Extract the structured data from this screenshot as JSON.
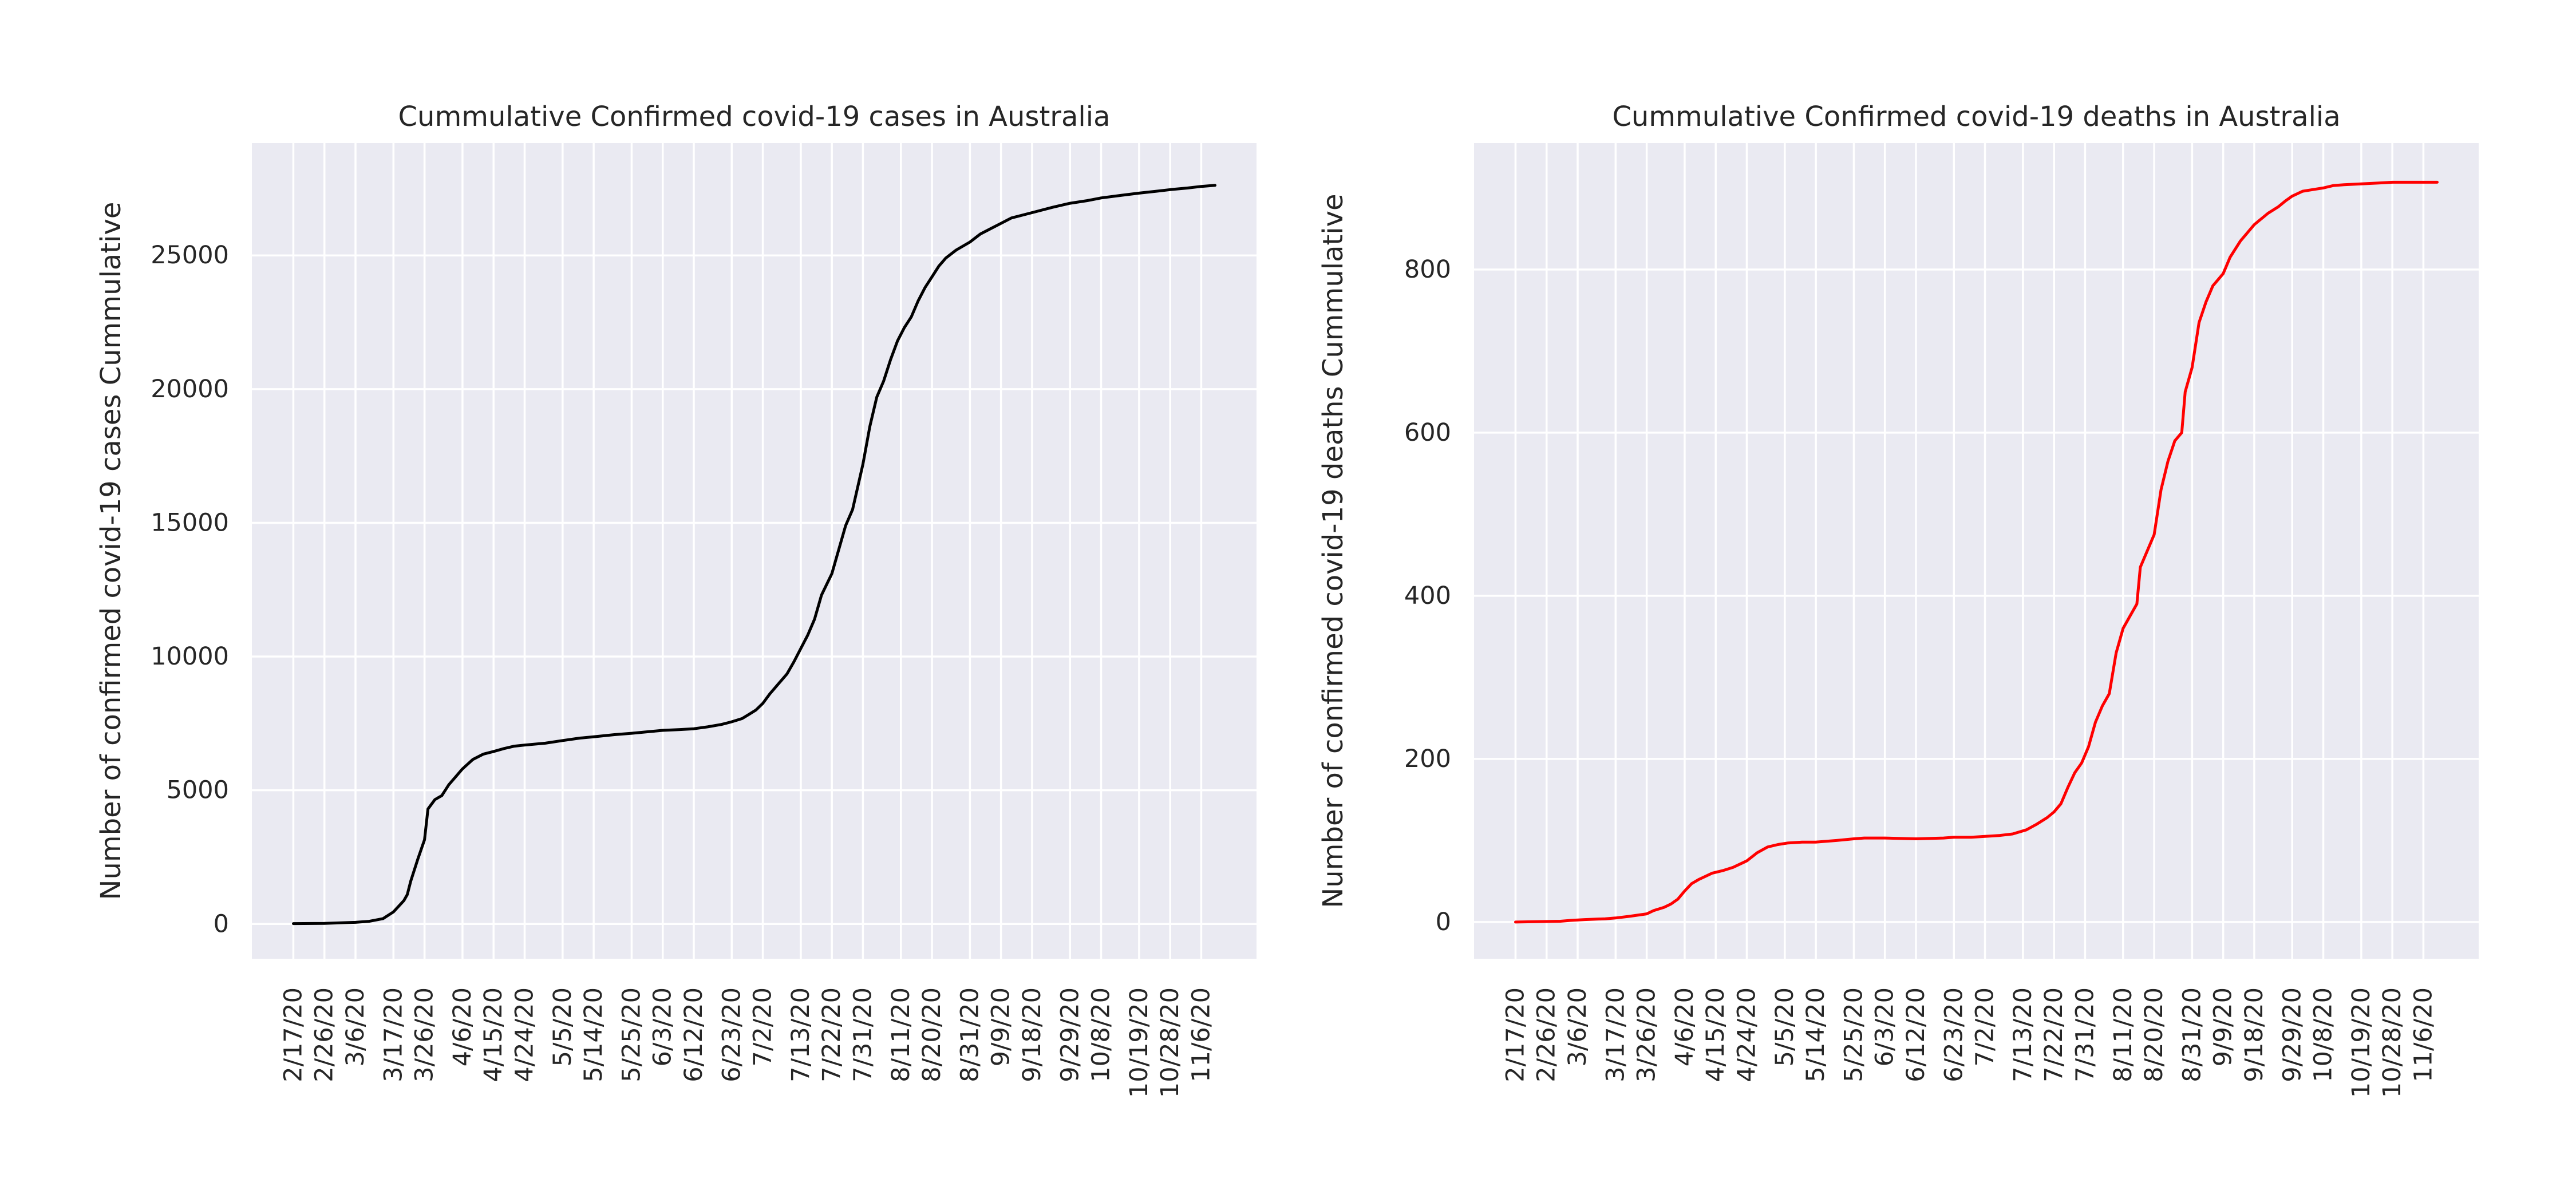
{
  "chart_data": [
    {
      "type": "line",
      "title": "Cummulative Confirmed covid-19 cases in Australia",
      "xlabel": "",
      "ylabel": "Number of confirmed covid-19 cases Cummulative",
      "x_start": "2/17/20",
      "x_end": "11/10/20",
      "xtick_labels": [
        "2/17/20",
        "2/26/20",
        "3/6/20",
        "3/17/20",
        "3/26/20",
        "4/6/20",
        "4/15/20",
        "4/24/20",
        "5/5/20",
        "5/14/20",
        "5/25/20",
        "6/3/20",
        "6/12/20",
        "6/23/20",
        "7/2/20",
        "7/13/20",
        "7/22/20",
        "7/31/20",
        "8/11/20",
        "8/20/20",
        "8/31/20",
        "9/9/20",
        "9/18/20",
        "9/29/20",
        "10/8/20",
        "10/19/20",
        "10/28/20",
        "11/6/20"
      ],
      "ytick_labels": [
        "0",
        "5000",
        "10000",
        "15000",
        "20000",
        "25000"
      ],
      "ylim": [
        -1300,
        29200
      ],
      "grid": true,
      "color": "#000000",
      "points": [
        [
          "2/17/20",
          15
        ],
        [
          "2/26/20",
          23
        ],
        [
          "3/6/20",
          62
        ],
        [
          "3/10/20",
          100
        ],
        [
          "3/14/20",
          200
        ],
        [
          "3/17/20",
          450
        ],
        [
          "3/20/20",
          870
        ],
        [
          "3/21/20",
          1100
        ],
        [
          "3/22/20",
          1600
        ],
        [
          "3/24/20",
          2400
        ],
        [
          "3/26/20",
          3150
        ],
        [
          "3/27/20",
          4300
        ],
        [
          "3/29/20",
          4650
        ],
        [
          "3/31/20",
          4800
        ],
        [
          "4/2/20",
          5200
        ],
        [
          "4/4/20",
          5500
        ],
        [
          "4/6/20",
          5800
        ],
        [
          "4/9/20",
          6150
        ],
        [
          "4/12/20",
          6350
        ],
        [
          "4/15/20",
          6450
        ],
        [
          "4/18/20",
          6560
        ],
        [
          "4/21/20",
          6650
        ],
        [
          "4/24/20",
          6690
        ],
        [
          "4/30/20",
          6760
        ],
        [
          "5/5/20",
          6860
        ],
        [
          "5/10/20",
          6950
        ],
        [
          "5/14/20",
          7000
        ],
        [
          "5/20/20",
          7080
        ],
        [
          "5/25/20",
          7130
        ],
        [
          "5/30/20",
          7190
        ],
        [
          "6/3/20",
          7240
        ],
        [
          "6/8/20",
          7270
        ],
        [
          "6/12/20",
          7300
        ],
        [
          "6/16/20",
          7370
        ],
        [
          "6/20/20",
          7460
        ],
        [
          "6/23/20",
          7560
        ],
        [
          "6/26/20",
          7680
        ],
        [
          "6/28/20",
          7840
        ],
        [
          "6/30/20",
          8000
        ],
        [
          "7/2/20",
          8250
        ],
        [
          "7/4/20",
          8600
        ],
        [
          "7/6/20",
          8900
        ],
        [
          "7/9/20",
          9350
        ],
        [
          "7/11/20",
          9800
        ],
        [
          "7/13/20",
          10300
        ],
        [
          "7/15/20",
          10800
        ],
        [
          "7/17/20",
          11400
        ],
        [
          "7/19/20",
          12300
        ],
        [
          "7/22/20",
          13100
        ],
        [
          "7/24/20",
          14000
        ],
        [
          "7/26/20",
          14900
        ],
        [
          "7/28/20",
          15500
        ],
        [
          "7/31/20",
          17200
        ],
        [
          "8/2/20",
          18600
        ],
        [
          "8/4/20",
          19700
        ],
        [
          "8/6/20",
          20300
        ],
        [
          "8/8/20",
          21100
        ],
        [
          "8/10/20",
          21800
        ],
        [
          "8/12/20",
          22300
        ],
        [
          "8/14/20",
          22700
        ],
        [
          "8/16/20",
          23300
        ],
        [
          "8/18/20",
          23800
        ],
        [
          "8/20/20",
          24200
        ],
        [
          "8/22/20",
          24600
        ],
        [
          "8/24/20",
          24900
        ],
        [
          "8/27/20",
          25200
        ],
        [
          "8/31/20",
          25500
        ],
        [
          "9/3/20",
          25800
        ],
        [
          "9/6/20",
          26000
        ],
        [
          "9/9/20",
          26200
        ],
        [
          "9/12/20",
          26400
        ],
        [
          "9/18/20",
          26600
        ],
        [
          "9/24/20",
          26800
        ],
        [
          "9/29/20",
          26950
        ],
        [
          "10/4/20",
          27050
        ],
        [
          "10/8/20",
          27150
        ],
        [
          "10/14/20",
          27250
        ],
        [
          "10/19/20",
          27330
        ],
        [
          "10/24/20",
          27400
        ],
        [
          "10/28/20",
          27460
        ],
        [
          "11/2/20",
          27520
        ],
        [
          "11/6/20",
          27580
        ],
        [
          "11/10/20",
          27620
        ]
      ]
    },
    {
      "type": "line",
      "title": "Cummulative Confirmed covid-19 deaths in Australia",
      "xlabel": "",
      "ylabel": "Number of confirmed covid-19 deaths Cummulative",
      "x_start": "2/17/20",
      "x_end": "11/10/20",
      "xtick_labels": [
        "2/17/20",
        "2/26/20",
        "3/6/20",
        "3/17/20",
        "3/26/20",
        "4/6/20",
        "4/15/20",
        "4/24/20",
        "5/5/20",
        "5/14/20",
        "5/25/20",
        "6/3/20",
        "6/12/20",
        "6/23/20",
        "7/2/20",
        "7/13/20",
        "7/22/20",
        "7/31/20",
        "8/11/20",
        "8/20/20",
        "8/31/20",
        "9/9/20",
        "9/18/20",
        "9/29/20",
        "10/8/20",
        "10/19/20",
        "10/28/20",
        "11/6/20"
      ],
      "ytick_labels": [
        "0",
        "200",
        "400",
        "600",
        "800"
      ],
      "ylim": [
        -45,
        955
      ],
      "grid": true,
      "color": "#ff0000",
      "points": [
        [
          "2/17/20",
          0
        ],
        [
          "3/1/20",
          1
        ],
        [
          "3/4/20",
          2
        ],
        [
          "3/8/20",
          3
        ],
        [
          "3/14/20",
          4
        ],
        [
          "3/17/20",
          5
        ],
        [
          "3/21/20",
          7
        ],
        [
          "3/26/20",
          10
        ],
        [
          "3/28/20",
          14
        ],
        [
          "3/31/20",
          18
        ],
        [
          "4/2/20",
          22
        ],
        [
          "4/4/20",
          28
        ],
        [
          "4/6/20",
          38
        ],
        [
          "4/8/20",
          47
        ],
        [
          "4/10/20",
          52
        ],
        [
          "4/12/20",
          56
        ],
        [
          "4/14/20",
          60
        ],
        [
          "4/17/20",
          63
        ],
        [
          "4/20/20",
          67
        ],
        [
          "4/24/20",
          75
        ],
        [
          "4/27/20",
          85
        ],
        [
          "4/30/20",
          92
        ],
        [
          "5/3/20",
          95
        ],
        [
          "5/6/20",
          97
        ],
        [
          "5/10/20",
          98
        ],
        [
          "5/14/20",
          98
        ],
        [
          "5/20/20",
          100
        ],
        [
          "5/25/20",
          102
        ],
        [
          "5/28/20",
          103
        ],
        [
          "6/3/20",
          103
        ],
        [
          "6/12/20",
          102
        ],
        [
          "6/20/20",
          103
        ],
        [
          "6/23/20",
          104
        ],
        [
          "6/28/20",
          104
        ],
        [
          "7/2/20",
          105
        ],
        [
          "7/6/20",
          106
        ],
        [
          "7/10/20",
          108
        ],
        [
          "7/14/20",
          113
        ],
        [
          "7/17/20",
          120
        ],
        [
          "7/20/20",
          128
        ],
        [
          "7/22/20",
          135
        ],
        [
          "7/24/20",
          145
        ],
        [
          "7/26/20",
          165
        ],
        [
          "7/28/20",
          183
        ],
        [
          "7/30/20",
          195
        ],
        [
          "8/1/20",
          215
        ],
        [
          "8/3/20",
          245
        ],
        [
          "8/5/20",
          265
        ],
        [
          "8/7/20",
          280
        ],
        [
          "8/9/20",
          330
        ],
        [
          "8/11/20",
          360
        ],
        [
          "8/13/20",
          375
        ],
        [
          "8/15/20",
          390
        ],
        [
          "8/16/20",
          435
        ],
        [
          "8/18/20",
          455
        ],
        [
          "8/20/20",
          475
        ],
        [
          "8/22/20",
          530
        ],
        [
          "8/24/20",
          565
        ],
        [
          "8/26/20",
          590
        ],
        [
          "8/28/20",
          600
        ],
        [
          "8/29/20",
          650
        ],
        [
          "8/31/20",
          680
        ],
        [
          "9/2/20",
          735
        ],
        [
          "9/4/20",
          760
        ],
        [
          "9/6/20",
          780
        ],
        [
          "9/9/20",
          795
        ],
        [
          "9/11/20",
          815
        ],
        [
          "9/14/20",
          835
        ],
        [
          "9/16/20",
          845
        ],
        [
          "9/18/20",
          855
        ],
        [
          "9/20/20",
          862
        ],
        [
          "9/22/20",
          869
        ],
        [
          "9/25/20",
          877
        ],
        [
          "9/27/20",
          884
        ],
        [
          "9/29/20",
          890
        ],
        [
          "10/2/20",
          896
        ],
        [
          "10/5/20",
          898
        ],
        [
          "10/8/20",
          900
        ],
        [
          "10/11/20",
          903
        ],
        [
          "10/14/20",
          904
        ],
        [
          "10/19/20",
          905
        ],
        [
          "10/24/20",
          906
        ],
        [
          "10/28/20",
          907
        ],
        [
          "11/2/20",
          907
        ],
        [
          "11/6/20",
          907
        ],
        [
          "11/10/20",
          907
        ]
      ]
    }
  ]
}
